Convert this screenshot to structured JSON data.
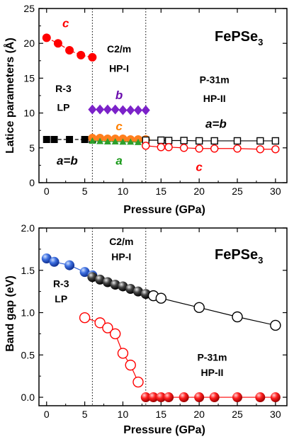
{
  "chart_data": [
    {
      "type": "scatter",
      "title": "FePSe",
      "title_sub": "3",
      "xlabel": "Pressure (GPa)",
      "ylabel": "Latice parameters (Å)",
      "xlim": [
        -1,
        31.5
      ],
      "ylim": [
        0,
        25
      ],
      "xticks": [
        "0",
        "5",
        "10",
        "15",
        "20",
        "25",
        "30"
      ],
      "yticks": [
        "0",
        "5",
        "10",
        "15",
        "20",
        "25"
      ],
      "transitions": [
        6,
        13
      ],
      "annotations": [
        {
          "text": "c",
          "x": 2.5,
          "y": 22.3,
          "color": "#ff0000",
          "italic": true
        },
        {
          "text": "C2/m",
          "x": 9.5,
          "y": 18.7,
          "color": "#000000"
        },
        {
          "text": "HP-I",
          "x": 9.5,
          "y": 15.9,
          "color": "#000000"
        },
        {
          "text": "R-3",
          "x": 2.2,
          "y": 13.0,
          "color": "#000000"
        },
        {
          "text": "LP",
          "x": 2.2,
          "y": 10.3,
          "color": "#000000"
        },
        {
          "text": "b",
          "x": 9.5,
          "y": 12.0,
          "color": "#6a0dad",
          "italic": true
        },
        {
          "text": "P-31m",
          "x": 22.0,
          "y": 14.3,
          "color": "#000000"
        },
        {
          "text": "HP-II",
          "x": 22.0,
          "y": 11.6,
          "color": "#000000"
        },
        {
          "text": "a=b",
          "x": 22.2,
          "y": 7.9,
          "color": "#000000",
          "italic": true
        },
        {
          "text": "c",
          "x": 9.5,
          "y": 7.5,
          "color": "#ff7f00",
          "italic": true
        },
        {
          "text": "a=b",
          "x": 2.7,
          "y": 2.6,
          "color": "#000000",
          "italic": true
        },
        {
          "text": "a",
          "x": 9.5,
          "y": 2.6,
          "color": "#1a9a1a",
          "italic": true
        },
        {
          "text": "c",
          "x": 20.0,
          "y": 1.7,
          "color": "#ff0000",
          "italic": true
        }
      ],
      "series": [
        {
          "label": "c-LP",
          "color": "#ff0000",
          "marker": "circle-filled",
          "line": "dashed",
          "x": [
            0,
            1.5,
            3,
            4.5,
            6
          ],
          "y": [
            20.8,
            20.0,
            19.0,
            18.3,
            18.0
          ]
        },
        {
          "label": "a=b-LP",
          "color": "#000000",
          "marker": "square-filled",
          "line": "dashed",
          "x": [
            0,
            1,
            3,
            5,
            6
          ],
          "y": [
            6.2,
            6.2,
            6.2,
            6.2,
            6.2
          ]
        },
        {
          "label": "b-HP-I",
          "color": "#7b22c9",
          "marker": "diamond-filled",
          "line": "solid",
          "x": [
            6,
            7,
            8,
            9,
            10,
            11,
            12,
            13
          ],
          "y": [
            10.5,
            10.5,
            10.5,
            10.5,
            10.4,
            10.4,
            10.4,
            10.4
          ]
        },
        {
          "label": "c-HP-I",
          "color": "#ff7f1e",
          "marker": "circle-filled",
          "line": "solid",
          "x": [
            6,
            7,
            8,
            9,
            10,
            11,
            12,
            13
          ],
          "y": [
            6.4,
            6.4,
            6.3,
            6.3,
            6.3,
            6.2,
            6.2,
            6.2
          ]
        },
        {
          "label": "a-HP-I",
          "color": "#2ca02c",
          "marker": "triangle-filled",
          "line": "solid",
          "x": [
            6,
            7,
            8,
            9,
            10,
            11,
            12,
            13
          ],
          "y": [
            6.0,
            5.95,
            5.9,
            5.9,
            5.85,
            5.85,
            5.8,
            5.8
          ]
        },
        {
          "label": "a=b-HP-II",
          "color": "#000000",
          "marker": "square-open",
          "line": "solid",
          "x": [
            13,
            15,
            16,
            18,
            20,
            22,
            25,
            28,
            30
          ],
          "y": [
            6.1,
            6.1,
            6.05,
            6.05,
            6.0,
            6.0,
            6.0,
            6.0,
            6.0
          ]
        },
        {
          "label": "c-HP-II",
          "color": "#ff0000",
          "marker": "circle-open",
          "line": "solid",
          "x": [
            13,
            15,
            16,
            18,
            20,
            22,
            25,
            28,
            30
          ],
          "y": [
            5.3,
            5.1,
            5.1,
            5.0,
            4.9,
            4.9,
            4.9,
            4.8,
            4.8
          ]
        }
      ]
    },
    {
      "type": "scatter",
      "title": "FePSe",
      "title_sub": "3",
      "xlabel": "Pressure (GPa)",
      "ylabel": "Band gap (eV)",
      "xlim": [
        -1,
        31.5
      ],
      "ylim": [
        -0.1,
        2.0
      ],
      "xticks": [
        "0",
        "5",
        "10",
        "15",
        "20",
        "25",
        "30"
      ],
      "yticks": [
        "0.0",
        "0.5",
        "1.0",
        "1.5",
        "2.0"
      ],
      "transitions": [
        6,
        13
      ],
      "annotations": [
        {
          "text": "C2/m",
          "x": 9.8,
          "y": 1.8,
          "color": "#000000"
        },
        {
          "text": "HP-I",
          "x": 9.8,
          "y": 1.62,
          "color": "#000000"
        },
        {
          "text": "R-3",
          "x": 1.9,
          "y": 1.3,
          "color": "#000000"
        },
        {
          "text": "LP",
          "x": 1.9,
          "y": 1.12,
          "color": "#000000"
        },
        {
          "text": "P-31m",
          "x": 21.7,
          "y": 0.43,
          "color": "#000000"
        },
        {
          "text": "HP-II",
          "x": 21.7,
          "y": 0.25,
          "color": "#000000"
        }
      ],
      "series": [
        {
          "label": "gap-LP",
          "color": "#2a5cd6",
          "marker": "sphere",
          "line": "solid",
          "x": [
            0,
            1,
            3,
            5,
            6
          ],
          "y": [
            1.64,
            1.6,
            1.56,
            1.48,
            1.44
          ]
        },
        {
          "label": "gap-HP-I",
          "color": "#222222",
          "marker": "sphere",
          "line": "solid",
          "x": [
            6,
            7,
            8,
            9,
            10,
            11,
            12,
            13
          ],
          "y": [
            1.42,
            1.39,
            1.36,
            1.33,
            1.31,
            1.28,
            1.25,
            1.22
          ]
        },
        {
          "label": "gap-HP-II",
          "color": "#000000",
          "marker": "circle-open",
          "line": "solid",
          "x": [
            14,
            15,
            20,
            25,
            30
          ],
          "y": [
            1.2,
            1.17,
            1.06,
            0.95,
            0.85
          ]
        },
        {
          "label": "gap-lower",
          "color": "#ff0000",
          "marker": "circle-open",
          "line": "solid",
          "x": [
            5,
            7,
            8,
            9,
            10,
            11,
            12
          ],
          "y": [
            0.94,
            0.88,
            0.82,
            0.75,
            0.52,
            0.38,
            0.18
          ]
        },
        {
          "label": "gap-metal",
          "color": "#ff0000",
          "marker": "sphere",
          "line": "solid",
          "x": [
            13,
            14,
            15,
            16,
            18,
            20,
            22,
            25,
            28,
            30
          ],
          "y": [
            0,
            0,
            0,
            0,
            0,
            0,
            0,
            0,
            0,
            0
          ]
        }
      ]
    }
  ]
}
